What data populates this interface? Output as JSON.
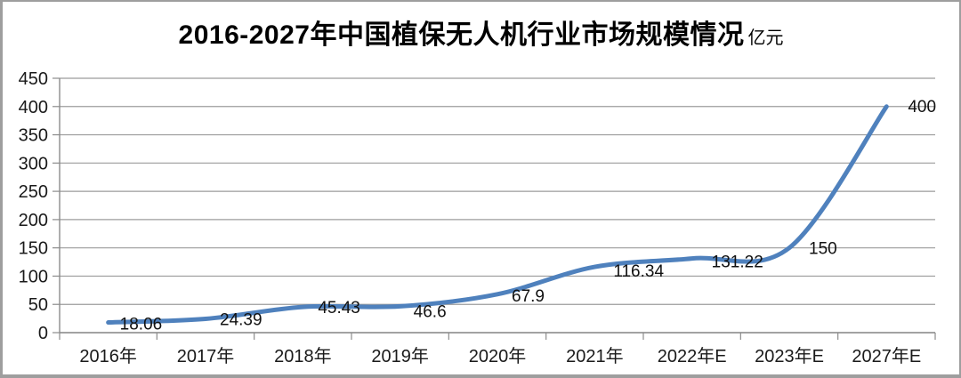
{
  "title": {
    "text": "2016-2027年中国植保无人机行业市场规模情况",
    "unit": "亿元"
  },
  "chart_data": {
    "type": "line",
    "title": "2016-2027年中国植保无人机行业市场规模情况",
    "unit_label": "亿元",
    "categories": [
      "2016年",
      "2017年",
      "2018年",
      "2019年",
      "2020年",
      "2021年",
      "2022年E",
      "2023年E",
      "2027年E"
    ],
    "values": [
      18.06,
      24.39,
      45.43,
      46.6,
      67.9,
      116.34,
      131.22,
      150,
      400
    ],
    "data_labels": [
      "18.06",
      "24.39",
      "45.43",
      "46.6",
      "67.9",
      "116.34",
      "131.22",
      "150",
      "400"
    ],
    "yticks": [
      0,
      50,
      100,
      150,
      200,
      250,
      300,
      350,
      400,
      450
    ],
    "ylim": [
      0,
      450
    ],
    "xlabel": "",
    "ylabel": "",
    "grid": true,
    "legend_position": "none",
    "line_color": "#4F81BD",
    "gridline_color": "#9c9c9c",
    "axis_color": "#8c8c8c",
    "label_color": "#111111",
    "tick_label_color": "#1a1a1a"
  }
}
